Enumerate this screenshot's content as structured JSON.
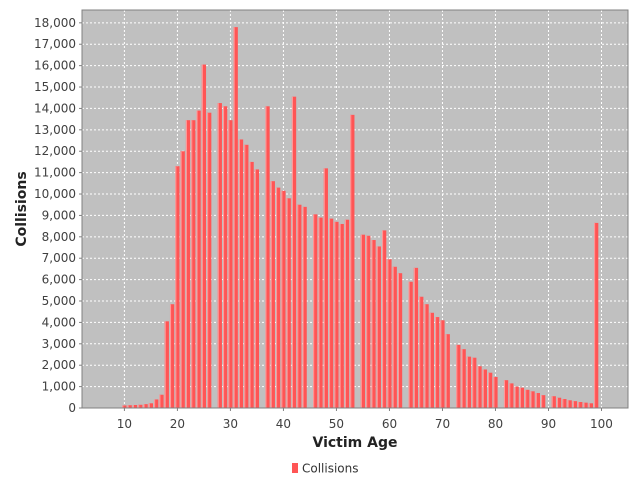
{
  "chart_data": {
    "type": "bar",
    "title": "",
    "xlabel": "Victim Age",
    "ylabel": "Collisions",
    "xlim": [
      2,
      105
    ],
    "ylim": [
      0,
      18600
    ],
    "xticks": [
      10,
      20,
      30,
      40,
      50,
      60,
      70,
      80,
      90,
      100
    ],
    "yticks": [
      0,
      1000,
      2000,
      3000,
      4000,
      5000,
      6000,
      7000,
      8000,
      9000,
      10000,
      11000,
      12000,
      13000,
      14000,
      15000,
      16000,
      17000,
      18000
    ],
    "ytick_labels": [
      "0",
      "1,000",
      "2,000",
      "3,000",
      "4,000",
      "5,000",
      "6,000",
      "7,000",
      "8,000",
      "9,000",
      "10,000",
      "11,000",
      "12,000",
      "13,000",
      "14,000",
      "15,000",
      "16,000",
      "17,000",
      "18,000"
    ],
    "grid": true,
    "plot_background": "#c0c0c0",
    "legend_position": "bottom-center",
    "series": [
      {
        "name": "Collisions",
        "color": "#ff5555",
        "x": [
          10,
          11,
          12,
          13,
          14,
          15,
          16,
          17,
          18,
          19,
          20,
          21,
          22,
          23,
          24,
          25,
          26,
          27,
          28,
          29,
          30,
          31,
          32,
          33,
          34,
          35,
          36,
          37,
          38,
          39,
          40,
          41,
          42,
          43,
          44,
          45,
          46,
          47,
          48,
          49,
          50,
          51,
          52,
          53,
          54,
          55,
          56,
          57,
          58,
          59,
          60,
          61,
          62,
          63,
          64,
          65,
          66,
          67,
          68,
          69,
          70,
          71,
          72,
          73,
          74,
          75,
          76,
          77,
          78,
          79,
          80,
          81,
          82,
          83,
          84,
          85,
          86,
          87,
          88,
          89,
          90,
          91,
          92,
          93,
          94,
          95,
          96,
          97,
          98,
          99
        ],
        "values": [
          120,
          130,
          140,
          150,
          180,
          220,
          400,
          620,
          4050,
          4850,
          11300,
          12000,
          13450,
          13450,
          13900,
          16050,
          13800,
          0,
          14250,
          14100,
          13450,
          17800,
          12550,
          12300,
          11500,
          11150,
          0,
          14100,
          10600,
          10300,
          10150,
          9800,
          14550,
          9500,
          9400,
          0,
          9050,
          8900,
          11200,
          8850,
          8700,
          8600,
          8800,
          13700,
          0,
          8100,
          8050,
          7850,
          7550,
          8300,
          6950,
          6600,
          6300,
          0,
          5900,
          6550,
          5200,
          4850,
          4450,
          4250,
          4100,
          3450,
          0,
          2950,
          2750,
          2400,
          2350,
          1950,
          1800,
          1650,
          1450,
          0,
          1300,
          1150,
          1000,
          950,
          850,
          780,
          700,
          600,
          0,
          550,
          480,
          420,
          360,
          320,
          280,
          250,
          220,
          8650
        ]
      }
    ]
  }
}
